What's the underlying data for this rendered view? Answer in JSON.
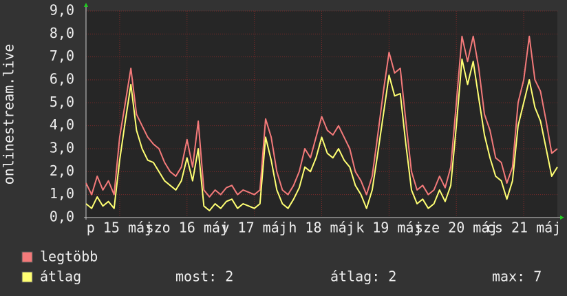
{
  "chart_data": {
    "type": "line",
    "y_label": "onlinestream.live",
    "x": [
      0,
      2,
      4,
      6,
      8,
      10,
      12,
      14,
      16,
      18,
      20,
      22,
      24,
      26,
      28,
      30,
      32,
      34,
      36,
      38,
      40,
      42,
      44,
      46,
      48,
      50,
      52,
      54,
      56,
      58,
      60,
      62,
      64,
      66,
      68,
      70,
      72,
      74,
      76,
      78,
      80,
      82,
      84,
      86,
      88,
      90,
      92,
      94,
      96,
      98,
      100,
      102,
      104,
      106,
      108,
      110,
      112,
      114,
      116,
      118,
      120,
      122,
      124,
      126,
      128,
      130,
      132,
      134,
      136,
      138,
      140,
      142,
      144,
      146,
      148,
      150,
      152,
      154,
      156,
      158,
      160,
      162,
      164,
      166,
      168
    ],
    "series": [
      {
        "name": "legtöbb",
        "color": "#f47a7a",
        "values": [
          1.5,
          1.0,
          1.8,
          1.2,
          1.6,
          1.0,
          3.5,
          5.0,
          6.5,
          4.5,
          4.0,
          3.5,
          3.2,
          3.0,
          2.4,
          2.0,
          1.8,
          2.2,
          3.4,
          2.2,
          4.2,
          1.2,
          0.9,
          1.2,
          1.0,
          1.3,
          1.4,
          1.0,
          1.2,
          1.1,
          1.0,
          1.2,
          4.3,
          3.5,
          2.0,
          1.2,
          1.0,
          1.4,
          2.0,
          3.0,
          2.6,
          3.5,
          4.4,
          3.8,
          3.6,
          4.0,
          3.5,
          3.0,
          2.0,
          1.6,
          1.0,
          1.8,
          3.6,
          5.5,
          7.2,
          6.3,
          6.5,
          4.2,
          2.0,
          1.2,
          1.4,
          1.0,
          1.2,
          1.8,
          1.3,
          2.2,
          5.0,
          7.9,
          6.8,
          7.9,
          6.5,
          4.5,
          3.8,
          2.6,
          2.4,
          1.5,
          2.2,
          5.0,
          6.0,
          7.9,
          6.0,
          5.5,
          4.2,
          2.8,
          3.0
        ]
      },
      {
        "name": "átlag",
        "color": "#ffff73",
        "values": [
          0.6,
          0.4,
          0.9,
          0.5,
          0.7,
          0.4,
          2.5,
          4.2,
          5.8,
          3.8,
          3.0,
          2.5,
          2.4,
          2.0,
          1.6,
          1.4,
          1.2,
          1.6,
          2.6,
          1.6,
          3.0,
          0.5,
          0.3,
          0.6,
          0.4,
          0.7,
          0.8,
          0.4,
          0.6,
          0.5,
          0.4,
          0.6,
          3.5,
          2.5,
          1.2,
          0.6,
          0.4,
          0.8,
          1.3,
          2.2,
          2.0,
          2.6,
          3.5,
          2.8,
          2.6,
          3.0,
          2.5,
          2.2,
          1.4,
          1.0,
          0.4,
          1.2,
          2.8,
          4.5,
          6.2,
          5.3,
          5.4,
          3.2,
          1.2,
          0.6,
          0.8,
          0.4,
          0.6,
          1.2,
          0.7,
          1.4,
          4.0,
          6.9,
          5.8,
          6.8,
          5.2,
          3.6,
          2.6,
          1.8,
          1.6,
          0.8,
          1.6,
          4.0,
          5.0,
          6.0,
          4.8,
          4.2,
          3.0,
          1.8,
          2.2
        ]
      }
    ],
    "xlim": [
      0,
      168
    ],
    "xticks": [
      {
        "value": 12,
        "label": "p 15 máj"
      },
      {
        "value": 36,
        "label": "szo 16 máj"
      },
      {
        "value": 60,
        "label": "v 17 máj"
      },
      {
        "value": 84,
        "label": "h 18 máj"
      },
      {
        "value": 108,
        "label": "k 19 máj"
      },
      {
        "value": 132,
        "label": "sze 20 máj"
      },
      {
        "value": 156,
        "label": "cs 21 máj"
      }
    ],
    "ylim": [
      0,
      9
    ],
    "yticks": [
      {
        "value": 0,
        "label": "0,0"
      },
      {
        "value": 1,
        "label": "1,0"
      },
      {
        "value": 2,
        "label": "2,0"
      },
      {
        "value": 3,
        "label": "3,0"
      },
      {
        "value": 4,
        "label": "4,0"
      },
      {
        "value": 5,
        "label": "5,0"
      },
      {
        "value": 6,
        "label": "6,0"
      },
      {
        "value": 7,
        "label": "7,0"
      },
      {
        "value": 8,
        "label": "8,0"
      },
      {
        "value": 9,
        "label": "9,0"
      }
    ],
    "grid": true,
    "legend_stats": [
      "most: 2",
      "átlag: 2",
      "max: 7"
    ]
  }
}
